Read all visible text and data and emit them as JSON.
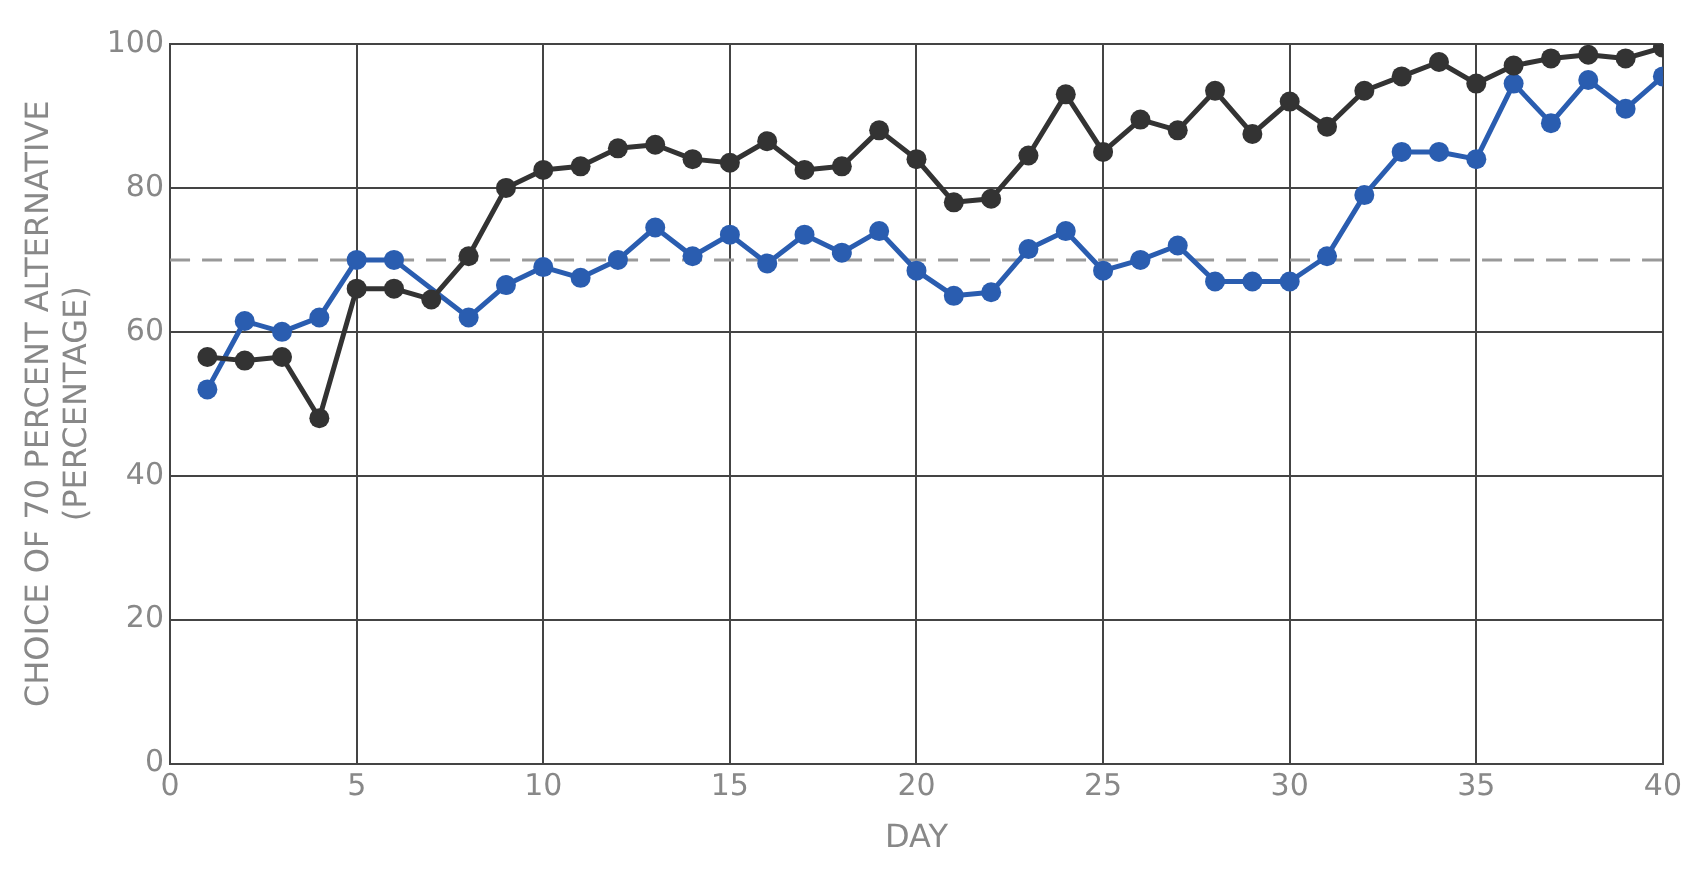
{
  "chart_data": {
    "type": "line",
    "xlabel": "DAY",
    "ylabel": "CHOICE OF 70 PERCENT ALTERNATIVE\n(PERCENTAGE)",
    "x": [
      1,
      2,
      3,
      4,
      5,
      6,
      7,
      8,
      9,
      10,
      11,
      12,
      13,
      14,
      15,
      16,
      17,
      18,
      19,
      20,
      21,
      22,
      23,
      24,
      25,
      26,
      27,
      28,
      29,
      30,
      31,
      32,
      33,
      34,
      35,
      36,
      37,
      38,
      39,
      40
    ],
    "series": [
      {
        "color": "#333333",
        "values": [
          56.5,
          56,
          56.5,
          48,
          66,
          66,
          64.5,
          70.5,
          80,
          82.5,
          83,
          85.5,
          86,
          84,
          83.5,
          86.5,
          82.5,
          83,
          88,
          84,
          78,
          78.5,
          84.5,
          93,
          85,
          89.5,
          88,
          93.5,
          87.5,
          92,
          88.5,
          93.5,
          95.5,
          97.5,
          94.5,
          97,
          98,
          98.5,
          98,
          99.5
        ]
      },
      {
        "color": "#2a5db0",
        "values": [
          52,
          61.5,
          60,
          62,
          70,
          70,
          null,
          62,
          66.5,
          69,
          67.5,
          70,
          74.5,
          70.5,
          73.5,
          69.5,
          73.5,
          71,
          74,
          68.5,
          65,
          65.5,
          71.5,
          74,
          68.5,
          70,
          72,
          67,
          67,
          67,
          70.5,
          79,
          85,
          85,
          84,
          94.5,
          89,
          95,
          91,
          95.5
        ]
      }
    ],
    "xlim": [
      0,
      40
    ],
    "xticks": [
      0,
      5,
      10,
      15,
      20,
      25,
      30,
      35,
      40
    ],
    "ylim": [
      0,
      100
    ],
    "yticks": [
      0,
      20,
      40,
      60,
      80,
      100
    ],
    "ref_lines": [
      {
        "axis": "y",
        "value": 70,
        "color": "#999999",
        "line_style": "dashed"
      }
    ],
    "grid": true,
    "legend": false,
    "marker": "circle",
    "line_style": "solid"
  }
}
